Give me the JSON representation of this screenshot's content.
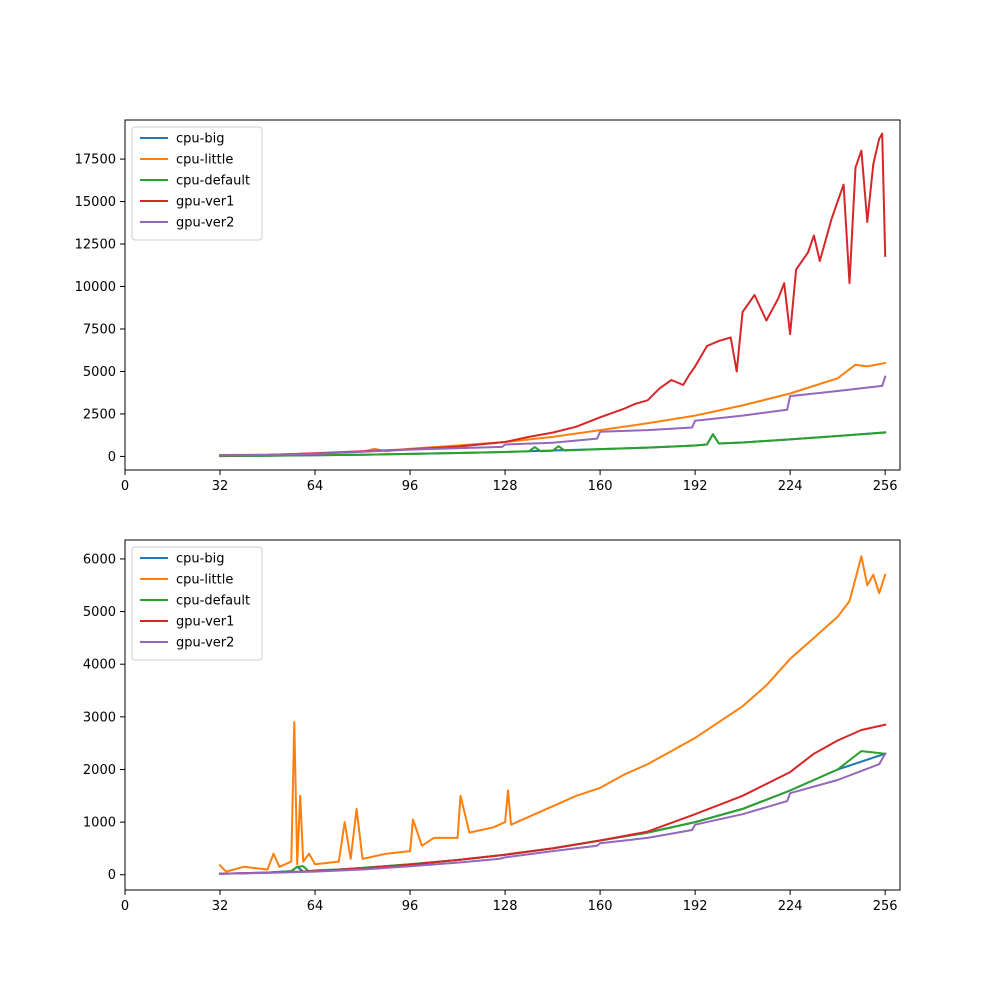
{
  "colors": {
    "cpu-big": "#1f77b4",
    "cpu-little": "#ff7f0e",
    "cpu-default": "#2ca02c",
    "gpu-ver1": "#d62728",
    "gpu-ver2": "#9467bd"
  },
  "chart_data": [
    {
      "type": "line",
      "title": "",
      "xlabel": "",
      "ylabel": "",
      "xlim": [
        0,
        261
      ],
      "ylim": [
        -800,
        19800
      ],
      "xticks": [
        0,
        32,
        64,
        96,
        128,
        160,
        192,
        224,
        256
      ],
      "yticks": [
        0,
        2500,
        5000,
        7500,
        10000,
        12500,
        15000,
        17500
      ],
      "legend": "upper-left",
      "grid": false,
      "series": [
        {
          "name": "cpu-big",
          "points": [
            [
              32,
              20
            ],
            [
              48,
              40
            ],
            [
              64,
              70
            ],
            [
              80,
              100
            ],
            [
              96,
              150
            ],
            [
              112,
              200
            ],
            [
              128,
              260
            ],
            [
              136,
              300
            ],
            [
              144,
              350
            ],
            [
              160,
              430
            ],
            [
              176,
              520
            ],
            [
              192,
              640
            ],
            [
              196,
              700
            ],
            [
              198,
              1300
            ],
            [
              200,
              760
            ],
            [
              208,
              820
            ],
            [
              224,
              1000
            ],
            [
              240,
              1200
            ],
            [
              256,
              1420
            ]
          ]
        },
        {
          "name": "cpu-little",
          "points": [
            [
              32,
              80
            ],
            [
              48,
              100
            ],
            [
              64,
              170
            ],
            [
              80,
              280
            ],
            [
              84,
              450
            ],
            [
              88,
              300
            ],
            [
              96,
              450
            ],
            [
              112,
              640
            ],
            [
              128,
              850
            ],
            [
              144,
              1150
            ],
            [
              160,
              1550
            ],
            [
              176,
              1950
            ],
            [
              192,
              2400
            ],
            [
              208,
              3000
            ],
            [
              224,
              3700
            ],
            [
              240,
              4600
            ],
            [
              246,
              5400
            ],
            [
              250,
              5300
            ],
            [
              256,
              5500
            ]
          ]
        },
        {
          "name": "cpu-default",
          "points": [
            [
              32,
              20
            ],
            [
              48,
              40
            ],
            [
              64,
              70
            ],
            [
              80,
              100
            ],
            [
              96,
              150
            ],
            [
              112,
              200
            ],
            [
              128,
              260
            ],
            [
              136,
              300
            ],
            [
              138,
              550
            ],
            [
              140,
              300
            ],
            [
              144,
              330
            ],
            [
              146,
              600
            ],
            [
              148,
              350
            ],
            [
              160,
              430
            ],
            [
              176,
              520
            ],
            [
              192,
              640
            ],
            [
              196,
              700
            ],
            [
              198,
              1300
            ],
            [
              200,
              760
            ],
            [
              208,
              820
            ],
            [
              224,
              1000
            ],
            [
              240,
              1200
            ],
            [
              256,
              1400
            ]
          ]
        },
        {
          "name": "gpu-ver1",
          "points": [
            [
              32,
              60
            ],
            [
              48,
              90
            ],
            [
              64,
              180
            ],
            [
              80,
              300
            ],
            [
              96,
              420
            ],
            [
              112,
              580
            ],
            [
              128,
              850
            ],
            [
              136,
              1150
            ],
            [
              144,
              1400
            ],
            [
              152,
              1750
            ],
            [
              160,
              2300
            ],
            [
              168,
              2800
            ],
            [
              172,
              3100
            ],
            [
              176,
              3300
            ],
            [
              180,
              4000
            ],
            [
              184,
              4500
            ],
            [
              188,
              4200
            ],
            [
              190,
              4800
            ],
            [
              192,
              5300
            ],
            [
              196,
              6500
            ],
            [
              200,
              6800
            ],
            [
              204,
              7000
            ],
            [
              206,
              5000
            ],
            [
              208,
              8500
            ],
            [
              212,
              9500
            ],
            [
              216,
              8000
            ],
            [
              220,
              9300
            ],
            [
              222,
              10200
            ],
            [
              224,
              7200
            ],
            [
              226,
              11000
            ],
            [
              230,
              12000
            ],
            [
              232,
              13000
            ],
            [
              234,
              11500
            ],
            [
              238,
              14000
            ],
            [
              240,
              15000
            ],
            [
              242,
              16000
            ],
            [
              244,
              10200
            ],
            [
              246,
              17000
            ],
            [
              248,
              18000
            ],
            [
              250,
              13800
            ],
            [
              252,
              17200
            ],
            [
              254,
              18700
            ],
            [
              255,
              19000
            ],
            [
              256,
              11800
            ]
          ]
        },
        {
          "name": "gpu-ver2",
          "points": [
            [
              32,
              60
            ],
            [
              48,
              90
            ],
            [
              64,
              150
            ],
            [
              80,
              280
            ],
            [
              96,
              400
            ],
            [
              127,
              560
            ],
            [
              128,
              700
            ],
            [
              144,
              800
            ],
            [
              159,
              1050
            ],
            [
              160,
              1450
            ],
            [
              176,
              1550
            ],
            [
              191,
              1700
            ],
            [
              192,
              2100
            ],
            [
              208,
              2400
            ],
            [
              223,
              2750
            ],
            [
              224,
              3550
            ],
            [
              240,
              3850
            ],
            [
              255,
              4150
            ],
            [
              256,
              4700
            ]
          ]
        }
      ]
    },
    {
      "type": "line",
      "title": "",
      "xlabel": "",
      "ylabel": "",
      "xlim": [
        0,
        261
      ],
      "ylim": [
        -290,
        6360
      ],
      "xticks": [
        0,
        32,
        64,
        96,
        128,
        160,
        192,
        224,
        256
      ],
      "yticks": [
        0,
        1000,
        2000,
        3000,
        4000,
        5000,
        6000
      ],
      "legend": "upper-left",
      "grid": false,
      "series": [
        {
          "name": "cpu-big",
          "points": [
            [
              32,
              20
            ],
            [
              40,
              30
            ],
            [
              48,
              40
            ],
            [
              56,
              70
            ],
            [
              58,
              150
            ],
            [
              60,
              60
            ],
            [
              64,
              80
            ],
            [
              72,
              100
            ],
            [
              80,
              130
            ],
            [
              96,
              200
            ],
            [
              112,
              280
            ],
            [
              128,
              380
            ],
            [
              144,
              500
            ],
            [
              160,
              650
            ],
            [
              176,
              800
            ],
            [
              192,
              1000
            ],
            [
              208,
              1250
            ],
            [
              224,
              1600
            ],
            [
              240,
              2000
            ],
            [
              256,
              2300
            ]
          ]
        },
        {
          "name": "cpu-little",
          "points": [
            [
              32,
              180
            ],
            [
              34,
              60
            ],
            [
              40,
              150
            ],
            [
              48,
              100
            ],
            [
              50,
              400
            ],
            [
              52,
              150
            ],
            [
              56,
              250
            ],
            [
              57,
              2900
            ],
            [
              58,
              200
            ],
            [
              59,
              1500
            ],
            [
              60,
              250
            ],
            [
              62,
              400
            ],
            [
              64,
              200
            ],
            [
              72,
              250
            ],
            [
              74,
              1000
            ],
            [
              76,
              300
            ],
            [
              78,
              1250
            ],
            [
              80,
              300
            ],
            [
              88,
              400
            ],
            [
              96,
              450
            ],
            [
              97,
              1050
            ],
            [
              100,
              550
            ],
            [
              104,
              700
            ],
            [
              112,
              700
            ],
            [
              113,
              1500
            ],
            [
              116,
              800
            ],
            [
              124,
              900
            ],
            [
              128,
              1000
            ],
            [
              129,
              1600
            ],
            [
              130,
              950
            ],
            [
              136,
              1100
            ],
            [
              144,
              1300
            ],
            [
              152,
              1500
            ],
            [
              160,
              1650
            ],
            [
              168,
              1900
            ],
            [
              176,
              2100
            ],
            [
              184,
              2350
            ],
            [
              192,
              2600
            ],
            [
              200,
              2900
            ],
            [
              208,
              3200
            ],
            [
              216,
              3600
            ],
            [
              224,
              4100
            ],
            [
              232,
              4500
            ],
            [
              240,
              4900
            ],
            [
              244,
              5200
            ],
            [
              248,
              6050
            ],
            [
              250,
              5500
            ],
            [
              252,
              5700
            ],
            [
              254,
              5350
            ],
            [
              256,
              5700
            ]
          ]
        },
        {
          "name": "cpu-default",
          "points": [
            [
              32,
              20
            ],
            [
              40,
              30
            ],
            [
              48,
              40
            ],
            [
              56,
              70
            ],
            [
              58,
              150
            ],
            [
              60,
              160
            ],
            [
              62,
              60
            ],
            [
              64,
              80
            ],
            [
              72,
              100
            ],
            [
              80,
              130
            ],
            [
              96,
              200
            ],
            [
              112,
              280
            ],
            [
              128,
              380
            ],
            [
              144,
              500
            ],
            [
              160,
              650
            ],
            [
              176,
              800
            ],
            [
              192,
              1000
            ],
            [
              208,
              1250
            ],
            [
              224,
              1600
            ],
            [
              240,
              2000
            ],
            [
              248,
              2350
            ],
            [
              256,
              2300
            ]
          ]
        },
        {
          "name": "gpu-ver1",
          "points": [
            [
              32,
              20
            ],
            [
              48,
              40
            ],
            [
              64,
              70
            ],
            [
              80,
              120
            ],
            [
              96,
              190
            ],
            [
              112,
              280
            ],
            [
              128,
              380
            ],
            [
              144,
              500
            ],
            [
              160,
              650
            ],
            [
              176,
              820
            ],
            [
              192,
              1150
            ],
            [
              208,
              1500
            ],
            [
              224,
              1950
            ],
            [
              232,
              2300
            ],
            [
              240,
              2550
            ],
            [
              248,
              2750
            ],
            [
              256,
              2850
            ]
          ]
        },
        {
          "name": "gpu-ver2",
          "points": [
            [
              32,
              20
            ],
            [
              48,
              35
            ],
            [
              64,
              60
            ],
            [
              80,
              100
            ],
            [
              96,
              160
            ],
            [
              112,
              230
            ],
            [
              126,
              300
            ],
            [
              128,
              330
            ],
            [
              144,
              450
            ],
            [
              159,
              550
            ],
            [
              160,
              600
            ],
            [
              176,
              700
            ],
            [
              191,
              850
            ],
            [
              192,
              950
            ],
            [
              208,
              1150
            ],
            [
              223,
              1400
            ],
            [
              224,
              1550
            ],
            [
              240,
              1800
            ],
            [
              254,
              2100
            ],
            [
              256,
              2300
            ]
          ]
        }
      ]
    }
  ]
}
